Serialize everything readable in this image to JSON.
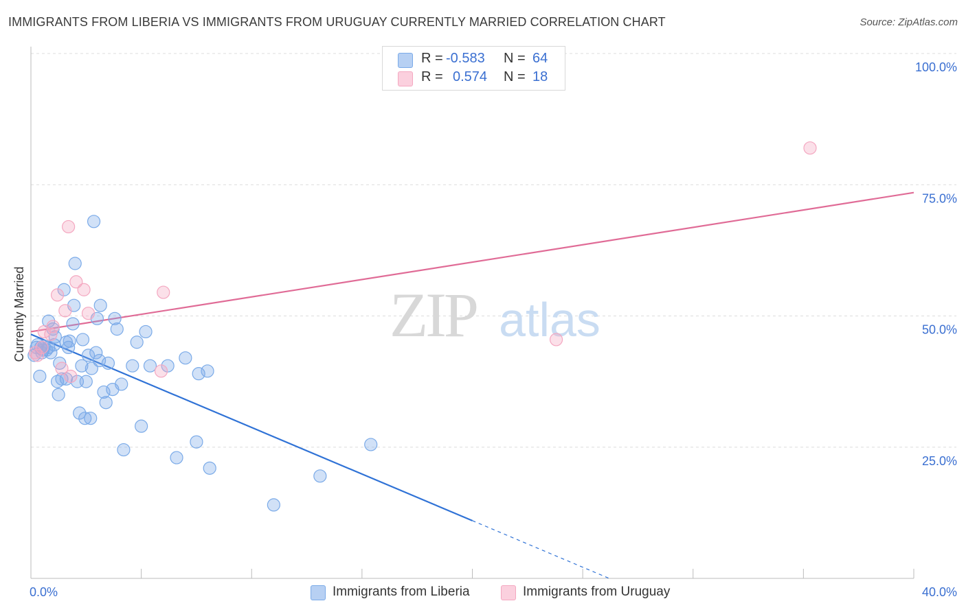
{
  "header": {
    "title": "IMMIGRANTS FROM LIBERIA VS IMMIGRANTS FROM URUGUAY CURRENTLY MARRIED CORRELATION CHART",
    "source": "Source: ZipAtlas.com"
  },
  "watermark": {
    "zip": "ZIP",
    "atlas": "atlas"
  },
  "legend_stats": [
    {
      "r_label": "R =",
      "r_value": "-0.583",
      "n_label": "N =",
      "n_value": "64",
      "color": "#7aaae8"
    },
    {
      "r_label": "R =",
      "r_value": "0.574",
      "n_label": "N =",
      "n_value": "18",
      "color": "#f4a7c0"
    }
  ],
  "chart_data": {
    "type": "scatter",
    "title": "IMMIGRANTS FROM LIBERIA VS IMMIGRANTS FROM URUGUAY CURRENTLY MARRIED CORRELATION CHART",
    "ylabel": "Currently Married",
    "xlabel": "",
    "xlim": [
      0,
      40
    ],
    "ylim": [
      0,
      100
    ],
    "x_tick_labels": [
      "0.0%",
      "40.0%"
    ],
    "y_tick_labels": [
      "25.0%",
      "50.0%",
      "75.0%",
      "100.0%"
    ],
    "y_ticks": [
      25,
      50,
      75,
      100
    ],
    "grid": true,
    "legend_position": "top-center and bottom",
    "series": [
      {
        "name": "Immigrants from Liberia",
        "color": "#7aaae8",
        "line_color": "#2f72d6",
        "trend": {
          "x0": 0,
          "y0": 46.5,
          "x1": 20,
          "y1": 11.0,
          "dashed_to_x": 26.2,
          "dashed_to_y": 0
        },
        "points": [
          [
            0.15,
            42.5
          ],
          [
            0.3,
            44.5
          ],
          [
            0.45,
            44.0
          ],
          [
            0.55,
            43.5
          ],
          [
            0.6,
            44.2
          ],
          [
            0.4,
            38.5
          ],
          [
            0.8,
            44.0
          ],
          [
            0.9,
            43.0
          ],
          [
            0.8,
            49.0
          ],
          [
            1.0,
            47.5
          ],
          [
            1.1,
            46.0
          ],
          [
            1.2,
            37.5
          ],
          [
            1.25,
            35.0
          ],
          [
            1.3,
            41.0
          ],
          [
            1.4,
            38.0
          ],
          [
            1.5,
            55.0
          ],
          [
            1.6,
            38.0
          ],
          [
            1.6,
            45.0
          ],
          [
            1.7,
            44.0
          ],
          [
            1.75,
            45.2
          ],
          [
            1.9,
            48.5
          ],
          [
            1.95,
            52.0
          ],
          [
            2.0,
            60.0
          ],
          [
            2.1,
            37.5
          ],
          [
            2.2,
            31.5
          ],
          [
            2.3,
            40.5
          ],
          [
            2.35,
            45.5
          ],
          [
            2.45,
            30.5
          ],
          [
            2.5,
            37.5
          ],
          [
            2.6,
            42.5
          ],
          [
            2.7,
            30.5
          ],
          [
            2.75,
            40.0
          ],
          [
            2.85,
            68.0
          ],
          [
            2.95,
            43.0
          ],
          [
            3.0,
            49.5
          ],
          [
            3.1,
            41.5
          ],
          [
            3.15,
            52.0
          ],
          [
            3.3,
            35.5
          ],
          [
            3.4,
            33.5
          ],
          [
            3.5,
            41.0
          ],
          [
            3.7,
            36.0
          ],
          [
            3.8,
            49.5
          ],
          [
            3.9,
            47.5
          ],
          [
            4.1,
            37.0
          ],
          [
            4.2,
            24.5
          ],
          [
            4.6,
            40.5
          ],
          [
            4.8,
            45.0
          ],
          [
            5.0,
            29.0
          ],
          [
            5.2,
            47.0
          ],
          [
            5.4,
            40.5
          ],
          [
            6.2,
            40.5
          ],
          [
            6.6,
            23.0
          ],
          [
            7.0,
            42.0
          ],
          [
            7.5,
            26.0
          ],
          [
            7.6,
            39.0
          ],
          [
            8.0,
            39.5
          ],
          [
            8.1,
            21.0
          ],
          [
            11.0,
            14.0
          ],
          [
            13.1,
            19.5
          ],
          [
            15.4,
            25.5
          ],
          [
            0.25,
            44.0
          ],
          [
            0.7,
            43.5
          ],
          [
            1.05,
            44.5
          ],
          [
            0.5,
            43.0
          ]
        ]
      },
      {
        "name": "Immigrants from Uruguay",
        "color": "#f4a7c0",
        "line_color": "#e06b96",
        "trend": {
          "x0": 0,
          "y0": 47.0,
          "x1": 40,
          "y1": 73.5
        },
        "points": [
          [
            0.3,
            42.5
          ],
          [
            0.5,
            44.0
          ],
          [
            0.6,
            47.0
          ],
          [
            0.9,
            46.5
          ],
          [
            1.0,
            48.0
          ],
          [
            1.2,
            54.0
          ],
          [
            1.4,
            40.0
          ],
          [
            1.55,
            51.0
          ],
          [
            1.7,
            67.0
          ],
          [
            1.8,
            38.5
          ],
          [
            2.05,
            56.5
          ],
          [
            2.4,
            55.0
          ],
          [
            2.6,
            50.5
          ],
          [
            6.0,
            54.5
          ],
          [
            5.9,
            39.5
          ],
          [
            23.8,
            45.5
          ],
          [
            35.3,
            82.0
          ],
          [
            0.2,
            43.0
          ]
        ]
      }
    ]
  }
}
